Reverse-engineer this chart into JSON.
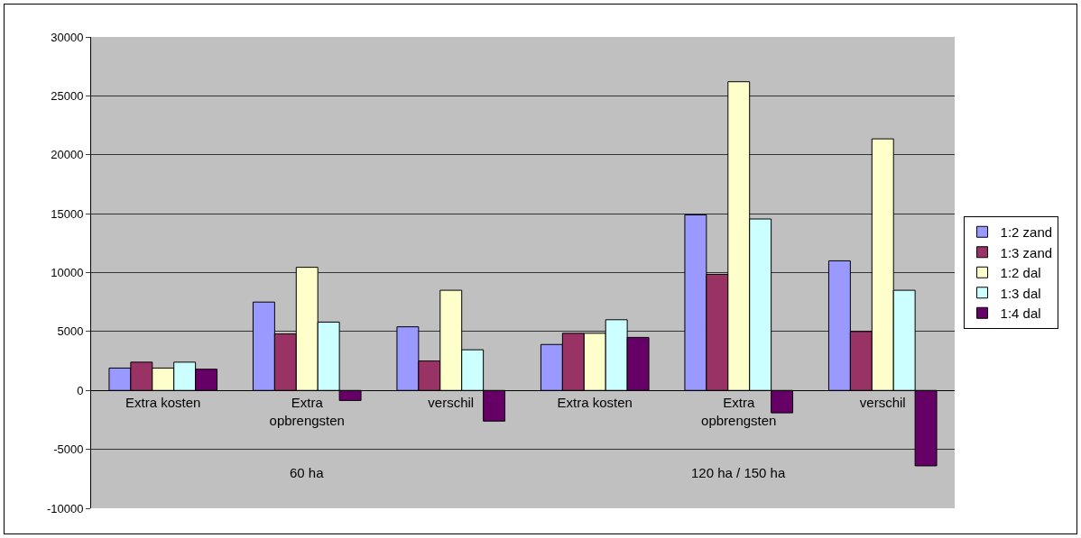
{
  "chart_data": {
    "type": "bar",
    "categories": [
      "Extra kosten",
      "Extra opbrengsten",
      "verschil",
      "Extra kosten",
      "Extra opbrengsten",
      "verschil"
    ],
    "annotations": [
      "60 ha",
      "120 ha / 150 ha"
    ],
    "series": [
      {
        "name": "1:2 zand",
        "color": "#9999ff",
        "values": [
          1900,
          7500,
          5400,
          3900,
          14900,
          11000
        ]
      },
      {
        "name": "1:3 zand",
        "color": "#993366",
        "values": [
          2400,
          4800,
          2500,
          4850,
          9850,
          5000
        ]
      },
      {
        "name": "1:2 dal",
        "color": "#ffffcc",
        "values": [
          1900,
          10450,
          8500,
          4850,
          26200,
          21350
        ]
      },
      {
        "name": "1:3 dal",
        "color": "#ccffff",
        "values": [
          2400,
          5800,
          3450,
          6000,
          14550,
          8500
        ]
      },
      {
        "name": "1:4 dal",
        "color": "#660066",
        "values": [
          1800,
          -850,
          -2600,
          4500,
          -1900,
          -6400
        ]
      }
    ],
    "ylim": [
      -10000,
      30000
    ],
    "yticks": [
      -10000,
      -5000,
      0,
      5000,
      10000,
      15000,
      20000,
      25000,
      30000
    ],
    "grid": "y",
    "legend": "right"
  }
}
